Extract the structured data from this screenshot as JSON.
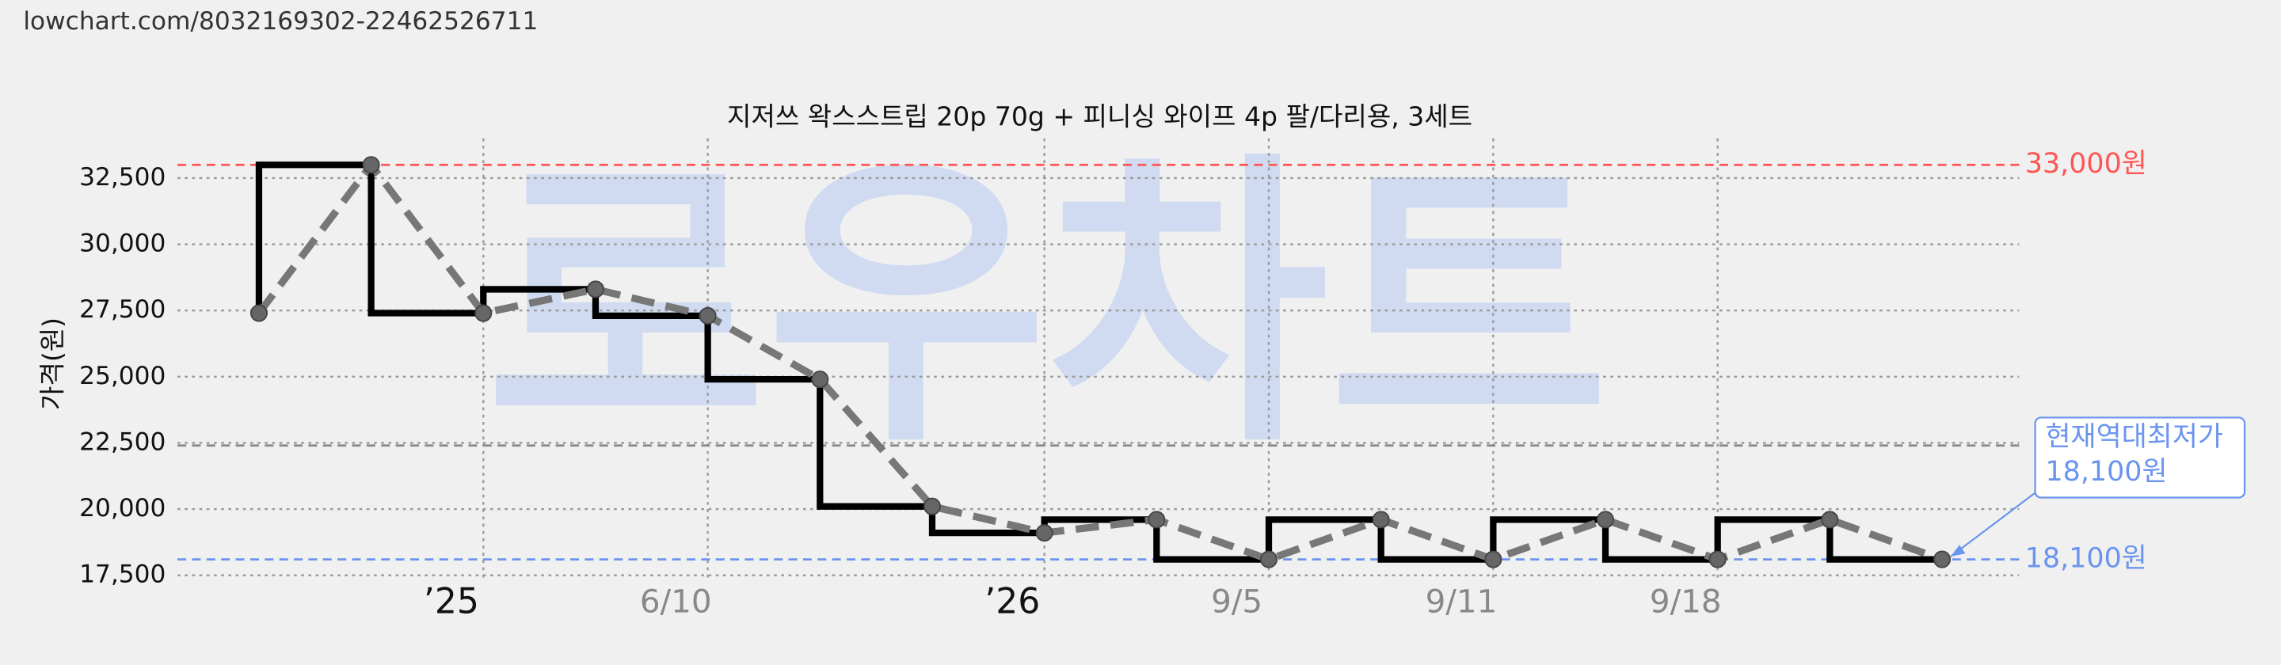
{
  "page_url": "lowchart.com/8032169302-22462526711",
  "watermark": "로우차트",
  "chart_data": {
    "type": "line",
    "title": "지저쓰 왁스스트립 20p 70g + 피니싱 와이프 4p 팔/다리용, 3세트",
    "y_label": "가격(원)",
    "categories": [
      null,
      null,
      "’25",
      null,
      "6/10",
      null,
      null,
      "’26",
      null,
      "9/5",
      null,
      "9/11",
      null,
      "9/18",
      null,
      null
    ],
    "series": [
      {
        "name": "가격",
        "color": "#000000",
        "values": [
          27400,
          33000,
          27400,
          28300,
          27300,
          24900,
          20100,
          19100,
          19600,
          18100,
          19600,
          18100,
          19600,
          18100,
          19600,
          18100
        ]
      }
    ],
    "ylim": [
      17250,
      34000
    ],
    "yticks": [
      {
        "value": 17500,
        "label": "17,500"
      },
      {
        "value": 20000,
        "label": "20,000"
      },
      {
        "value": 22500,
        "label": "22,500"
      },
      {
        "value": 25000,
        "label": "25,000"
      },
      {
        "value": 27500,
        "label": "27,500"
      },
      {
        "value": 30000,
        "label": "30,000"
      },
      {
        "value": 32500,
        "label": "32,500"
      }
    ],
    "grid": true,
    "reference_lines": [
      {
        "value": 33000,
        "label": "33,000원",
        "color": "#ff5555"
      },
      {
        "value": 22400,
        "color": "#888888"
      },
      {
        "value": 18100,
        "label": "18,100원",
        "color": "#6a94ee"
      }
    ],
    "annotation": {
      "lines": [
        "현재역대최저가",
        "18,100원"
      ],
      "color": "#6a94ee"
    }
  }
}
